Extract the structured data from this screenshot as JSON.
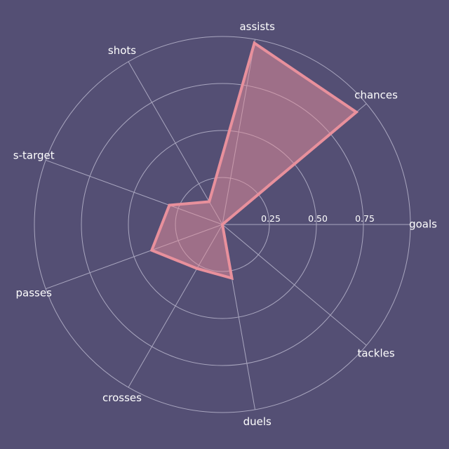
{
  "chart_data": {
    "type": "radar",
    "axes": [
      "goals",
      "chances",
      "assists",
      "shots",
      "s-target",
      "passes",
      "crosses",
      "duels",
      "tackles"
    ],
    "series": [
      {
        "values": [
          0.0,
          0.93,
          0.98,
          0.14,
          0.3,
          0.4,
          0.27,
          0.29,
          0.0
        ]
      }
    ],
    "rlim": [
      0,
      1
    ],
    "rticks": [
      0.25,
      0.5,
      0.75
    ],
    "rtick_labels": [
      "0.25",
      "0.50",
      "0.75"
    ],
    "grid": true,
    "colors": {
      "background": "#544f74",
      "series": "#e8909c",
      "grid": "#a9a6bf",
      "text": "#ffffff"
    }
  }
}
